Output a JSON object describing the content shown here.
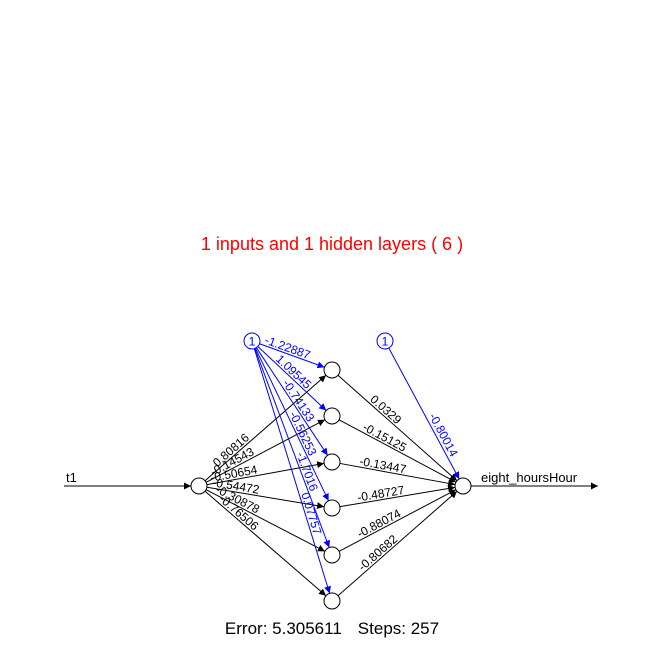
{
  "title": "1 inputs and 1 hidden layers ( 6 )",
  "colors": {
    "title": "#ff0000",
    "bias": "#0000ff",
    "weights": "#000000",
    "background": "#ffffff"
  },
  "network": {
    "input_label": "t1",
    "output_label": "eight_hoursHour",
    "bias_label": "1",
    "input_to_hidden_weights": [
      "0.80816",
      "-0.14543",
      "-0.50654",
      "-0.54472",
      "-0.30878",
      "-0.76506"
    ],
    "hidden_to_output_weights": [
      "0.0329",
      "-0.15125",
      "-0.13447",
      "-0.48727",
      "-0.88074",
      "-0.80682"
    ],
    "bias_to_hidden_weights": [
      "-1.22887",
      "1.09545",
      "-0.74133",
      "-0.56253",
      "-1.7016",
      "0.07757"
    ],
    "bias_to_output_weight": "-0.80014"
  },
  "footer": {
    "error": "Error: 5.305611",
    "steps": "Steps: 257"
  }
}
